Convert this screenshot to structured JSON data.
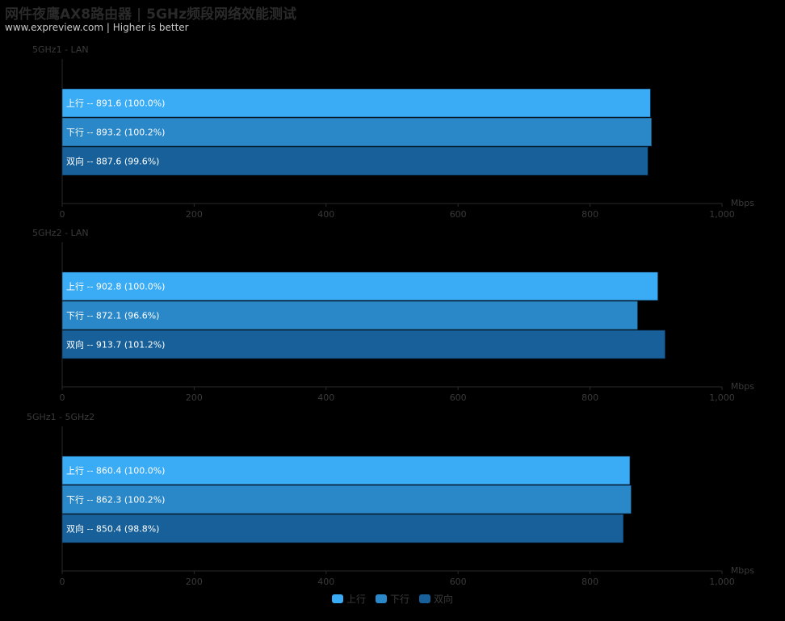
{
  "title": "网件夜鹰AX8路由器 | 5GHz频段网络效能测试",
  "subtitle": "www.expreview.com | Higher is better",
  "colors": {
    "background": "#000000",
    "series_up": "#3aabf5",
    "series_down": "#2a87c8",
    "series_bi": "#17609a",
    "axis": "#2a2a2a",
    "muted_text": "#3a3a3a"
  },
  "chart_data": [
    {
      "type": "bar",
      "orientation": "horizontal",
      "title": "5GHz1 - LAN",
      "categories": [
        "上行",
        "下行",
        "双向"
      ],
      "values": [
        891.6,
        893.2,
        887.6
      ],
      "value_labels": [
        "上行 -- 891.6 (100.0%)",
        "下行 -- 893.2 (100.2%)",
        "双向 -- 887.6 (99.6%)"
      ],
      "xunit": "Mbps",
      "xlim": [
        0,
        1000
      ],
      "xticks": [
        "0",
        "200",
        "400",
        "600",
        "800",
        "1,000"
      ]
    },
    {
      "type": "bar",
      "orientation": "horizontal",
      "title": "5GHz2 - LAN",
      "categories": [
        "上行",
        "下行",
        "双向"
      ],
      "values": [
        902.8,
        872.1,
        913.7
      ],
      "value_labels": [
        "上行 -- 902.8 (100.0%)",
        "下行 -- 872.1 (96.6%)",
        "双向 -- 913.7 (101.2%)"
      ],
      "xunit": "Mbps",
      "xlim": [
        0,
        1000
      ],
      "xticks": [
        "0",
        "200",
        "400",
        "600",
        "800",
        "1,000"
      ]
    },
    {
      "type": "bar",
      "orientation": "horizontal",
      "title": "5GHz1 - 5GHz2",
      "categories": [
        "上行",
        "下行",
        "双向"
      ],
      "values": [
        860.4,
        862.3,
        850.4
      ],
      "value_labels": [
        "上行 -- 860.4 (100.0%)",
        "下行 -- 862.3 (100.2%)",
        "双向 -- 850.4 (98.8%)"
      ],
      "xunit": "Mbps",
      "xlim": [
        0,
        1000
      ],
      "xticks": [
        "0",
        "200",
        "400",
        "600",
        "800",
        "1,000"
      ]
    }
  ],
  "legend": {
    "items": [
      {
        "label": "上行",
        "color": "#3aabf5"
      },
      {
        "label": "下行",
        "color": "#2a87c8"
      },
      {
        "label": "双向",
        "color": "#17609a"
      }
    ]
  }
}
